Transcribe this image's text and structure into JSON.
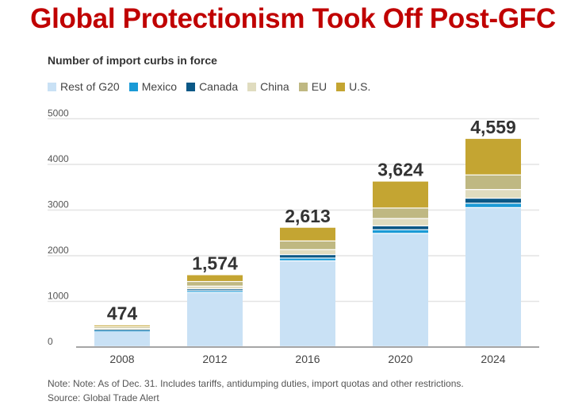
{
  "title": "Global Protectionism Took Off Post-GFC",
  "note": "Note: Note: As of Dec. 31. Includes tariffs, antidumping duties, import quotas and other restrictions.",
  "source": "Source: Global Trade Alert",
  "chart_data": {
    "type": "bar",
    "stacked": true,
    "title": "Number of import curbs in force",
    "categories": [
      "2008",
      "2012",
      "2016",
      "2020",
      "2024"
    ],
    "totals": [
      "474",
      "1,574",
      "2,613",
      "3,624",
      "4,559"
    ],
    "ylim": [
      0,
      5000
    ],
    "yticks": [
      "0",
      "1000",
      "2000",
      "3000",
      "4000",
      "5000"
    ],
    "grid": true,
    "legend_position": "top-left",
    "series": [
      {
        "name": "Rest of G20",
        "color": "#c9e1f5",
        "values": [
          344,
          1184,
          1878,
          2479,
          3044
        ]
      },
      {
        "name": "Mexico",
        "color": "#1a9ad6",
        "values": [
          15,
          40,
          60,
          80,
          95
        ]
      },
      {
        "name": "Canada",
        "color": "#0b5886",
        "values": [
          15,
          40,
          75,
          85,
          110
        ]
      },
      {
        "name": "China",
        "color": "#e0dcbf",
        "values": [
          25,
          60,
          110,
          160,
          190
        ]
      },
      {
        "name": "EU",
        "color": "#bfb882",
        "values": [
          35,
          100,
          190,
          230,
          320
        ]
      },
      {
        "name": "U.S.",
        "color": "#c4a532",
        "values": [
          40,
          150,
          300,
          590,
          800
        ]
      }
    ]
  }
}
